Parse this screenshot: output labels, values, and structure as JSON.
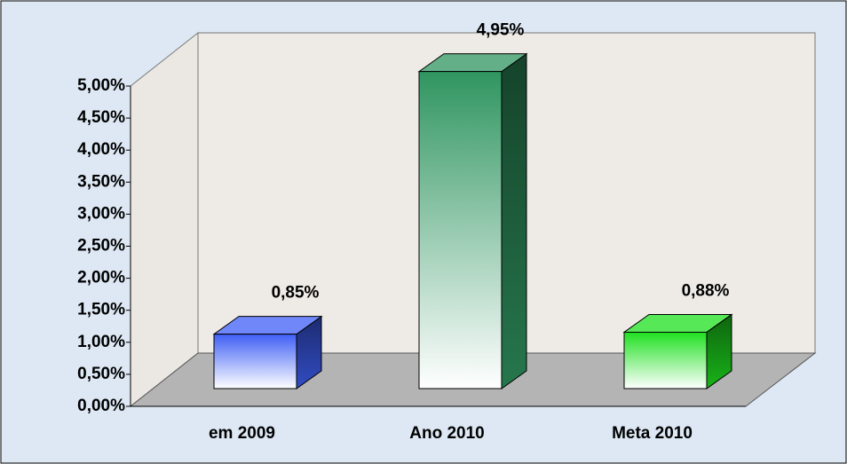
{
  "chart_data": {
    "type": "bar3d",
    "categories": [
      "em 2009",
      "Ano 2010",
      "Meta 2010"
    ],
    "values": [
      0.85,
      4.95,
      0.88
    ],
    "value_labels": [
      "0,85%",
      "4,95%",
      "0,88%"
    ],
    "colors": [
      "#3f5ff5",
      "#2f9560",
      "#1fe01f"
    ],
    "ylim": [
      0,
      5
    ],
    "yticks": [
      {
        "value": 0,
        "label": "0,00%"
      },
      {
        "value": 0.5,
        "label": "0,50%"
      },
      {
        "value": 1,
        "label": "1,00%"
      },
      {
        "value": 1.5,
        "label": "1,50%"
      },
      {
        "value": 2,
        "label": "2,00%"
      },
      {
        "value": 2.5,
        "label": "2,50%"
      },
      {
        "value": 3,
        "label": "3,00%"
      },
      {
        "value": 3.5,
        "label": "3,50%"
      },
      {
        "value": 4,
        "label": "4,00%"
      },
      {
        "value": 4.5,
        "label": "4,50%"
      },
      {
        "value": 5,
        "label": "5,00%"
      }
    ]
  }
}
